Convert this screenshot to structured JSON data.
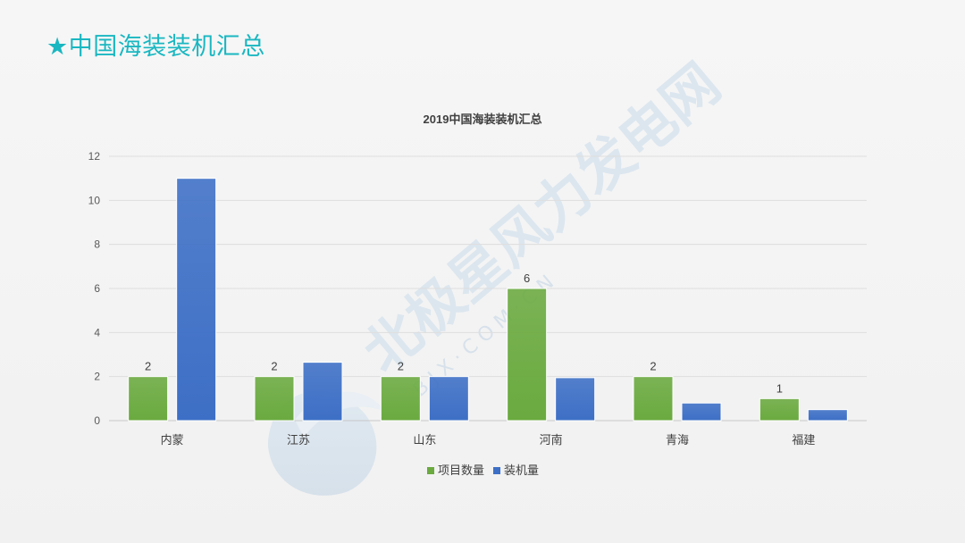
{
  "slide": {
    "title": "★中国海装装机汇总"
  },
  "watermark": {
    "text": "北极星风力发电网",
    "subtext": "B J X · C O M · C N"
  },
  "chart_data": {
    "type": "bar",
    "title": "2019中国海装装机汇总",
    "categories": [
      "内蒙",
      "江苏",
      "山东",
      "河南",
      "青海",
      "福建"
    ],
    "series": [
      {
        "name": "项目数量",
        "values": [
          2,
          2,
          2,
          6,
          2,
          1
        ],
        "data_labels": [
          "2",
          "2",
          "2",
          "6",
          "2",
          "1"
        ],
        "color": "#6aaa3f"
      },
      {
        "name": "装机量",
        "values": [
          11,
          2.65,
          2,
          1.95,
          0.8,
          0.5
        ],
        "color": "#3d6fc6"
      }
    ],
    "ylim": [
      0,
      12
    ],
    "yticks": [
      "0",
      "2",
      "4",
      "6",
      "8",
      "10",
      "12"
    ],
    "grid": true,
    "legend": "bottom",
    "xlabel": "",
    "ylabel": ""
  }
}
